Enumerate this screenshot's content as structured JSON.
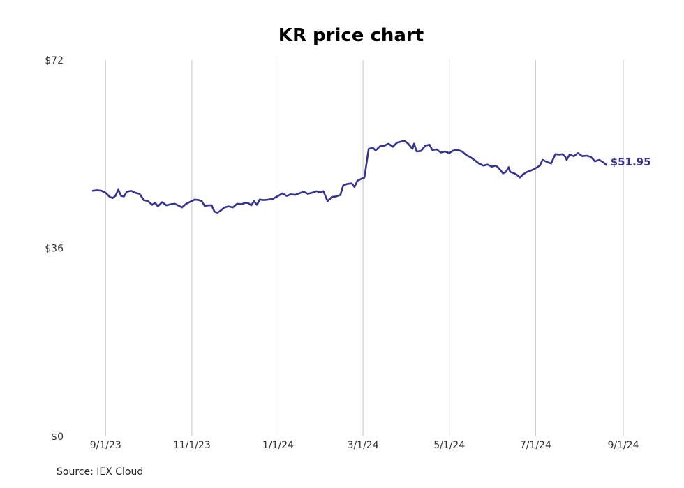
{
  "chart_data": {
    "type": "line",
    "title": "KR price chart",
    "xlabel": "",
    "ylabel": "",
    "x_ticks": [
      "9/1/23",
      "11/1/23",
      "1/1/24",
      "3/1/24",
      "5/1/24",
      "7/1/24",
      "9/1/24"
    ],
    "y_ticks": [
      "$0",
      "$36",
      "$72"
    ],
    "ylim": [
      0,
      72
    ],
    "xlim": [
      "2023-08-23",
      "2024-09-01"
    ],
    "grid": "vertical",
    "line_color": "#35338f",
    "end_label": "$51.95",
    "series": [
      {
        "points": [
          [
            "2023-08-23",
            47.0
          ],
          [
            "2023-08-26",
            47.1
          ],
          [
            "2023-08-29",
            47.0
          ],
          [
            "2023-09-01",
            46.6
          ],
          [
            "2023-09-04",
            45.8
          ],
          [
            "2023-09-06",
            45.6
          ],
          [
            "2023-09-08",
            46.0
          ],
          [
            "2023-09-10",
            47.2
          ],
          [
            "2023-09-12",
            46.0
          ],
          [
            "2023-09-14",
            45.9
          ],
          [
            "2023-09-16",
            46.8
          ],
          [
            "2023-09-19",
            47.0
          ],
          [
            "2023-09-22",
            46.6
          ],
          [
            "2023-09-25",
            46.4
          ],
          [
            "2023-09-28",
            45.2
          ],
          [
            "2023-10-01",
            45.0
          ],
          [
            "2023-10-04",
            44.3
          ],
          [
            "2023-10-06",
            44.7
          ],
          [
            "2023-10-08",
            44.0
          ],
          [
            "2023-10-11",
            44.8
          ],
          [
            "2023-10-14",
            44.2
          ],
          [
            "2023-10-17",
            44.4
          ],
          [
            "2023-10-20",
            44.5
          ],
          [
            "2023-10-23",
            44.1
          ],
          [
            "2023-10-25",
            43.8
          ],
          [
            "2023-10-28",
            44.5
          ],
          [
            "2023-10-31",
            44.9
          ],
          [
            "2023-11-03",
            45.3
          ],
          [
            "2023-11-06",
            45.2
          ],
          [
            "2023-11-08",
            45.0
          ],
          [
            "2023-11-10",
            44.1
          ],
          [
            "2023-11-13",
            44.2
          ],
          [
            "2023-11-15",
            44.2
          ],
          [
            "2023-11-17",
            43.0
          ],
          [
            "2023-11-19",
            42.8
          ],
          [
            "2023-11-21",
            43.1
          ],
          [
            "2023-11-24",
            43.8
          ],
          [
            "2023-11-27",
            44.0
          ],
          [
            "2023-11-30",
            43.8
          ],
          [
            "2023-12-03",
            44.5
          ],
          [
            "2023-12-06",
            44.4
          ],
          [
            "2023-12-09",
            44.7
          ],
          [
            "2023-12-11",
            44.6
          ],
          [
            "2023-12-13",
            44.2
          ],
          [
            "2023-12-15",
            45.0
          ],
          [
            "2023-12-17",
            44.3
          ],
          [
            "2023-12-19",
            45.3
          ],
          [
            "2023-12-22",
            45.2
          ],
          [
            "2023-12-25",
            45.3
          ],
          [
            "2023-12-28",
            45.4
          ],
          [
            "2024-01-01",
            46.0
          ],
          [
            "2024-01-04",
            46.5
          ],
          [
            "2024-01-07",
            46.0
          ],
          [
            "2024-01-10",
            46.3
          ],
          [
            "2024-01-13",
            46.2
          ],
          [
            "2024-01-16",
            46.5
          ],
          [
            "2024-01-19",
            46.8
          ],
          [
            "2024-01-22",
            46.4
          ],
          [
            "2024-01-25",
            46.6
          ],
          [
            "2024-01-28",
            46.9
          ],
          [
            "2024-01-31",
            46.7
          ],
          [
            "2024-02-02",
            46.9
          ],
          [
            "2024-02-05",
            45.0
          ],
          [
            "2024-02-08",
            45.8
          ],
          [
            "2024-02-11",
            45.9
          ],
          [
            "2024-02-14",
            46.2
          ],
          [
            "2024-02-16",
            48.0
          ],
          [
            "2024-02-19",
            48.3
          ],
          [
            "2024-02-22",
            48.4
          ],
          [
            "2024-02-24",
            47.7
          ],
          [
            "2024-02-26",
            48.9
          ],
          [
            "2024-02-29",
            49.3
          ],
          [
            "2024-03-02",
            49.5
          ],
          [
            "2024-03-05",
            55.0
          ],
          [
            "2024-03-08",
            55.2
          ],
          [
            "2024-03-10",
            54.7
          ],
          [
            "2024-03-13",
            55.5
          ],
          [
            "2024-03-16",
            55.6
          ],
          [
            "2024-03-19",
            56.0
          ],
          [
            "2024-03-22",
            55.4
          ],
          [
            "2024-03-25",
            56.2
          ],
          [
            "2024-03-28",
            56.4
          ],
          [
            "2024-03-30",
            56.6
          ],
          [
            "2024-04-02",
            56.0
          ],
          [
            "2024-04-05",
            55.0
          ],
          [
            "2024-04-06",
            56.0
          ],
          [
            "2024-04-08",
            54.5
          ],
          [
            "2024-04-11",
            54.6
          ],
          [
            "2024-04-14",
            55.6
          ],
          [
            "2024-04-17",
            55.8
          ],
          [
            "2024-04-19",
            54.8
          ],
          [
            "2024-04-22",
            54.9
          ],
          [
            "2024-04-25",
            54.3
          ],
          [
            "2024-04-28",
            54.5
          ],
          [
            "2024-05-01",
            54.2
          ],
          [
            "2024-05-04",
            54.7
          ],
          [
            "2024-05-07",
            54.8
          ],
          [
            "2024-05-10",
            54.5
          ],
          [
            "2024-05-13",
            53.8
          ],
          [
            "2024-05-16",
            53.4
          ],
          [
            "2024-05-19",
            52.8
          ],
          [
            "2024-05-22",
            52.2
          ],
          [
            "2024-05-25",
            51.8
          ],
          [
            "2024-05-28",
            52.0
          ],
          [
            "2024-05-31",
            51.6
          ],
          [
            "2024-06-03",
            51.8
          ],
          [
            "2024-06-05",
            51.3
          ],
          [
            "2024-06-06",
            51.0
          ],
          [
            "2024-06-08",
            50.3
          ],
          [
            "2024-06-10",
            50.6
          ],
          [
            "2024-06-12",
            51.5
          ],
          [
            "2024-06-13",
            50.6
          ],
          [
            "2024-06-16",
            50.3
          ],
          [
            "2024-06-18",
            50.0
          ],
          [
            "2024-06-20",
            49.5
          ],
          [
            "2024-06-22",
            50.1
          ],
          [
            "2024-06-25",
            50.6
          ],
          [
            "2024-06-28",
            50.9
          ],
          [
            "2024-07-01",
            51.3
          ],
          [
            "2024-07-04",
            51.8
          ],
          [
            "2024-07-06",
            52.9
          ],
          [
            "2024-07-09",
            52.5
          ],
          [
            "2024-07-12",
            52.2
          ],
          [
            "2024-07-15",
            54.0
          ],
          [
            "2024-07-18",
            53.9
          ],
          [
            "2024-07-20",
            54.0
          ],
          [
            "2024-07-22",
            53.5
          ],
          [
            "2024-07-23",
            52.9
          ],
          [
            "2024-07-25",
            53.9
          ],
          [
            "2024-07-28",
            53.6
          ],
          [
            "2024-07-31",
            54.2
          ],
          [
            "2024-08-03",
            53.6
          ],
          [
            "2024-08-06",
            53.7
          ],
          [
            "2024-08-09",
            53.5
          ],
          [
            "2024-08-12",
            52.6
          ],
          [
            "2024-08-15",
            52.9
          ],
          [
            "2024-08-18",
            52.4
          ],
          [
            "2024-08-20",
            51.95
          ]
        ]
      }
    ]
  },
  "source": "Source: IEX Cloud"
}
